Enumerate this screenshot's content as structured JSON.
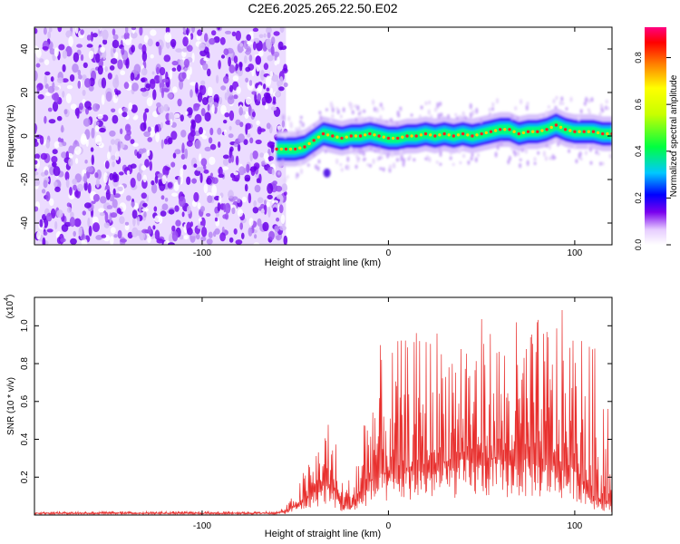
{
  "title": "C2E6.2025.265.22.50.E02",
  "chart_data": [
    {
      "type": "heatmap",
      "xlabel": "Height of straight line (km)",
      "ylabel": "Frequency (Hz)",
      "xlim": [
        -190,
        120
      ],
      "ylim": [
        -50,
        50
      ],
      "xticks": [
        -100,
        0,
        100
      ],
      "yticks": [
        -40,
        -20,
        0,
        20,
        40
      ],
      "colorbar": {
        "label": "Normalized spectral amplitude",
        "range": [
          0,
          0.93
        ],
        "ticks": [
          0,
          0.2,
          0.4,
          0.6,
          0.8
        ]
      },
      "noise_region_x": [
        -190,
        -55
      ],
      "signal_track": {
        "x": [
          -60,
          -55,
          -50,
          -45,
          -40,
          -35,
          -30,
          -25,
          -20,
          -15,
          -10,
          -5,
          0,
          5,
          10,
          15,
          20,
          25,
          30,
          35,
          40,
          45,
          50,
          55,
          60,
          65,
          70,
          75,
          80,
          85,
          90,
          95,
          100,
          105,
          110,
          115,
          120
        ],
        "y": [
          -6,
          -6,
          -6,
          -5,
          -2,
          1,
          0,
          -1,
          0,
          0,
          1,
          0,
          -1,
          -1,
          0,
          0,
          1,
          0,
          1,
          0,
          1,
          0,
          1,
          2,
          3,
          3,
          1,
          2,
          2,
          3,
          5,
          3,
          2,
          2,
          2,
          1,
          1
        ]
      },
      "blob": {
        "x": -33,
        "y": -17
      }
    },
    {
      "type": "line",
      "xlabel": "Height of straight line (km)",
      "ylabel": "SNR (10 * v/v)",
      "y_multiplier": "(x10",
      "y_multiplier_exp": "4",
      "xlim": [
        -190,
        120
      ],
      "ylim": [
        0,
        1.15
      ],
      "xticks": [
        -100,
        0,
        100
      ],
      "yticks": [
        0.2,
        0.4,
        0.6,
        0.8,
        1.0
      ],
      "line_color": "#e8302e",
      "envelope": {
        "x": [
          -190,
          -60,
          -55,
          -50,
          -45,
          -40,
          -35,
          -30,
          -25,
          -20,
          -15,
          -10,
          -5,
          0,
          10,
          20,
          30,
          40,
          50,
          60,
          70,
          80,
          90,
          100,
          110,
          120
        ],
        "base": [
          0.01,
          0.01,
          0.02,
          0.05,
          0.08,
          0.12,
          0.18,
          0.15,
          0.05,
          0.05,
          0.1,
          0.18,
          0.22,
          0.22,
          0.25,
          0.27,
          0.28,
          0.3,
          0.3,
          0.3,
          0.3,
          0.3,
          0.28,
          0.25,
          0.1,
          0.05
        ],
        "peak": [
          0.02,
          0.02,
          0.05,
          0.12,
          0.25,
          0.35,
          0.55,
          0.5,
          0.2,
          0.2,
          0.5,
          0.8,
          0.9,
          0.9,
          0.95,
          1.0,
          1.05,
          1.1,
          1.05,
          1.0,
          1.05,
          1.05,
          1.1,
          1.05,
          0.9,
          0.85
        ]
      }
    }
  ]
}
